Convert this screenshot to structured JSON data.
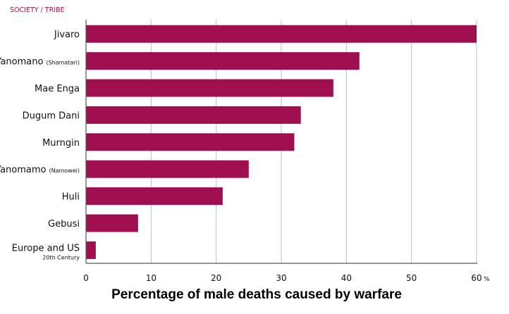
{
  "chart_data": {
    "type": "bar",
    "orientation": "horizontal",
    "title": "SOCIETY / TRIBE",
    "xlabel": "Percentage of male deaths caused by warfare",
    "ylabel": "",
    "x_unit": "%",
    "xlim": [
      0,
      60
    ],
    "xticks": [
      0,
      10,
      20,
      30,
      40,
      50,
      60
    ],
    "grid": "vertical",
    "bar_color": "#a00f50",
    "categories": [
      {
        "name": "Jivaro",
        "sub": "",
        "below": ""
      },
      {
        "name": "Yanomano",
        "sub": "(Shamatari)",
        "below": ""
      },
      {
        "name": "Mae Enga",
        "sub": "",
        "below": ""
      },
      {
        "name": "Dugum Dani",
        "sub": "",
        "below": ""
      },
      {
        "name": "Murngin",
        "sub": "",
        "below": ""
      },
      {
        "name": "Yanomamo",
        "sub": "(Namowei)",
        "below": ""
      },
      {
        "name": "Huli",
        "sub": "",
        "below": ""
      },
      {
        "name": "Gebusi",
        "sub": "",
        "below": ""
      },
      {
        "name": "Europe and US",
        "sub": "",
        "below": "20th Century"
      }
    ],
    "values": [
      60,
      42,
      38,
      33,
      32,
      25,
      21,
      8,
      1.5
    ]
  }
}
